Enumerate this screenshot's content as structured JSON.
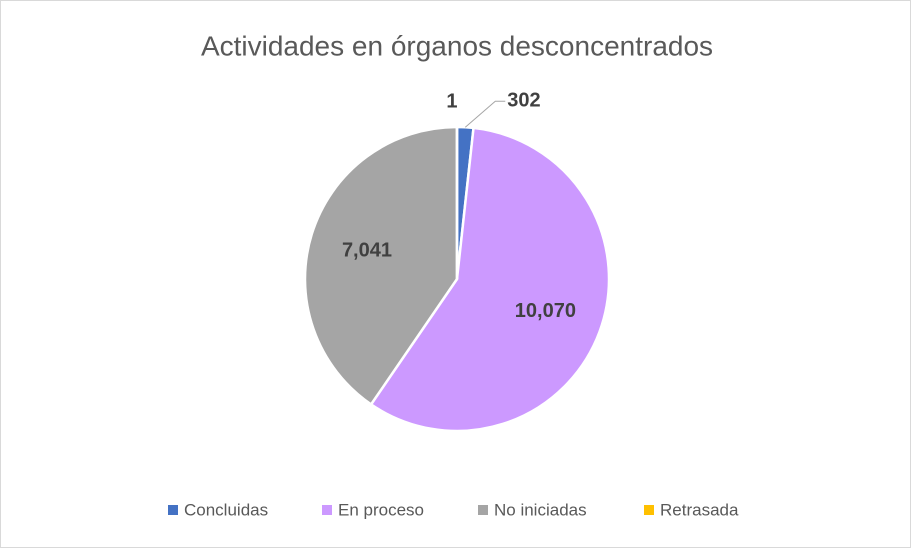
{
  "chart_data": {
    "type": "pie",
    "title": "Actividades en órganos desconcentrados",
    "categories": [
      "Concluidas",
      "En proceso",
      "No iniciadas",
      "Retrasada"
    ],
    "values": [
      302,
      10070,
      7041,
      1
    ],
    "value_labels": [
      "302",
      "10,070",
      "7,041",
      "1"
    ],
    "colors": [
      "#4472c4",
      "#cc99ff",
      "#a5a5a5",
      "#ffc000"
    ],
    "legend": "bottom"
  }
}
